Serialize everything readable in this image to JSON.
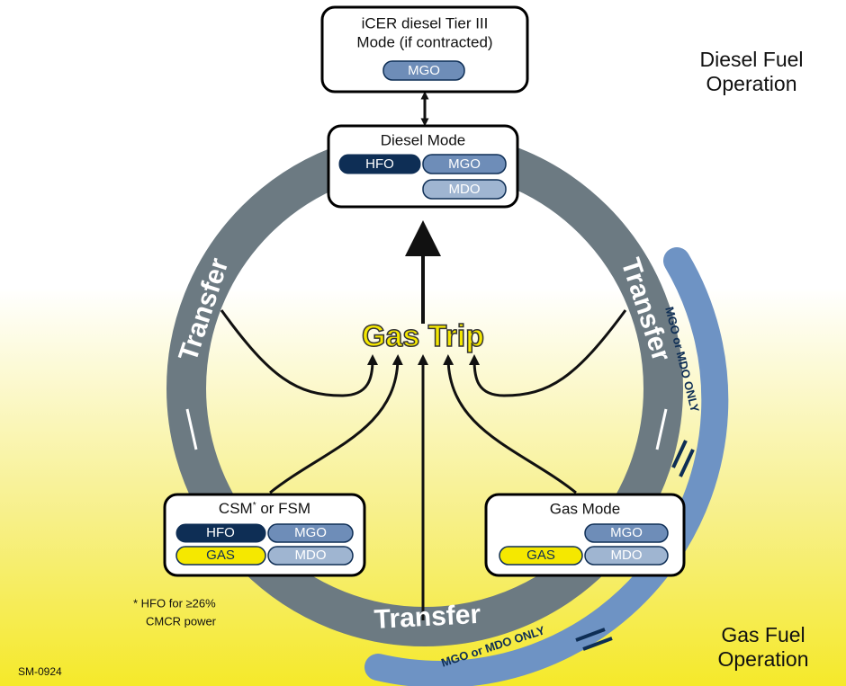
{
  "top_box": {
    "title_lines": [
      "iCER diesel Tier III",
      "Mode (if contracted)"
    ],
    "fuels": [
      "MGO"
    ]
  },
  "diesel_mode": {
    "title": "Diesel Mode",
    "fuels": [
      "HFO",
      "MGO",
      "MDO"
    ]
  },
  "csm_mode": {
    "title_parts": [
      "CSM",
      "*",
      " or FSM"
    ],
    "fuels": [
      "HFO",
      "MGO",
      "GAS",
      "MDO"
    ]
  },
  "gas_mode": {
    "title": "Gas Mode",
    "fuels": [
      "MGO",
      "GAS",
      "MDO"
    ]
  },
  "center_label": "Gas Trip",
  "transfer_labels": [
    "Transfer",
    "Transfer",
    "Transfer"
  ],
  "restriction_labels": [
    "MGO or MDO ONLY",
    "MGO or MDO ONLY"
  ],
  "regions": {
    "diesel": [
      "Diesel Fuel",
      "Operation"
    ],
    "gas": [
      "Gas Fuel",
      "Operation"
    ]
  },
  "footnote": [
    "* HFO for ≥26%",
    "CMCR power"
  ],
  "figure_id": "SM-0924"
}
